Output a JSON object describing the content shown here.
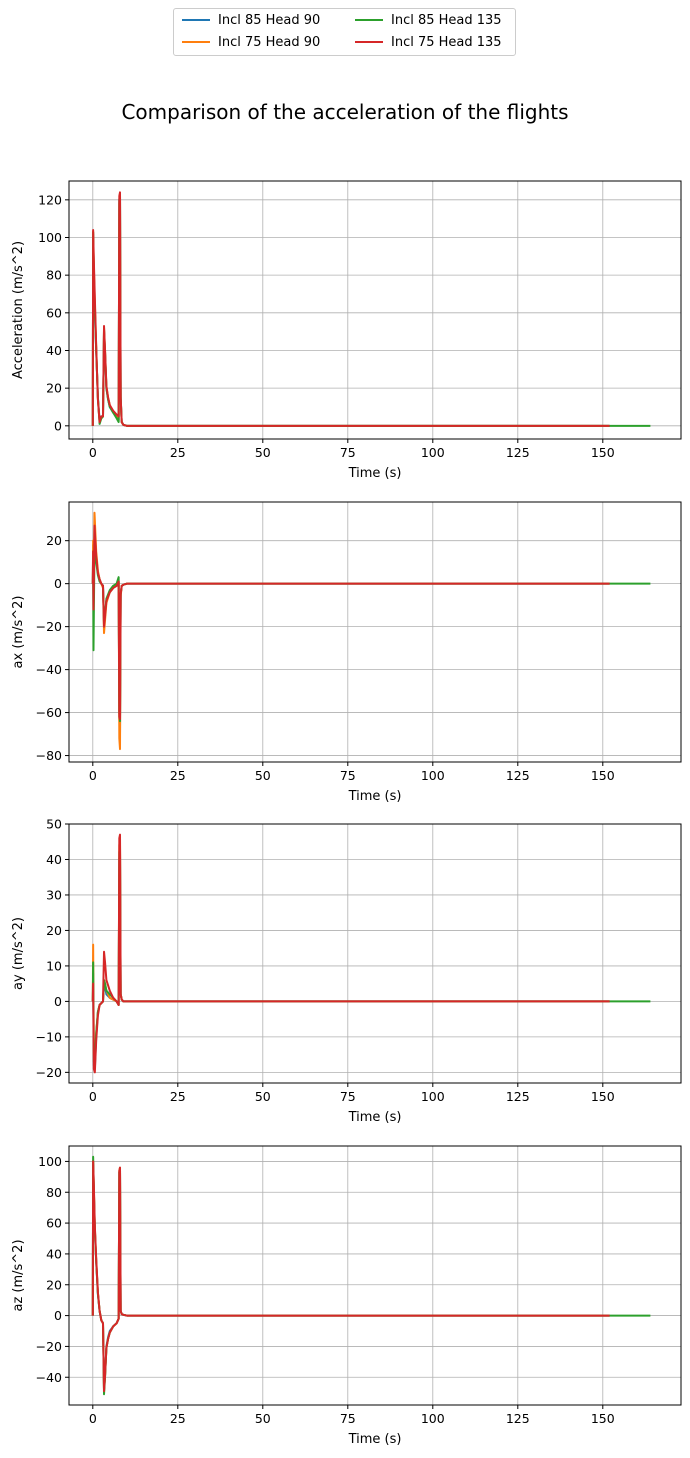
{
  "figure": {
    "title": "Comparison of the acceleration of the flights"
  },
  "legend": {
    "items": [
      {
        "label": "Incl 85 Head 90",
        "color": "#1f77b4"
      },
      {
        "label": "Incl 75 Head 90",
        "color": "#ff7f0e"
      },
      {
        "label": "Incl 85 Head 135",
        "color": "#2ca02c"
      },
      {
        "label": "Incl 75 Head 135",
        "color": "#d62728"
      }
    ]
  },
  "chart_data": [
    {
      "type": "line",
      "xlabel": "Time (s)",
      "ylabel": "Acceleration (m/s^2)",
      "xlim": [
        -7,
        173
      ],
      "ylim": [
        -7,
        130
      ],
      "xticks": [
        0,
        25,
        50,
        75,
        100,
        125,
        150
      ],
      "yticks": [
        0,
        20,
        40,
        60,
        80,
        100,
        120
      ],
      "grid": true,
      "series": [
        {
          "name": "Incl 85 Head 90",
          "color": "#1f77b4",
          "x": [
            0,
            0.1,
            0.3,
            0.6,
            1.0,
            1.5,
            2.0,
            2.5,
            3.0,
            3.3,
            3.6,
            4.0,
            4.5,
            5.0,
            6.0,
            7.0,
            7.6,
            7.8,
            8.0,
            8.2,
            8.5,
            9.0,
            10.0,
            15.0,
            152.0
          ],
          "y": [
            0,
            102,
            80,
            60,
            40,
            15,
            3,
            5,
            5,
            50,
            38,
            20,
            14,
            10,
            7,
            5,
            3,
            120,
            123,
            15,
            2,
            0.5,
            0,
            0,
            0
          ]
        },
        {
          "name": "Incl 75 Head 90",
          "color": "#ff7f0e",
          "x": [
            0,
            0.1,
            0.3,
            0.6,
            1.0,
            1.5,
            2.0,
            2.5,
            3.0,
            3.3,
            3.6,
            4.0,
            4.5,
            5.0,
            6.0,
            7.0,
            7.6,
            7.8,
            8.0,
            8.2,
            8.5,
            9.0,
            10.0,
            15.0,
            152.0
          ],
          "y": [
            0,
            103,
            85,
            65,
            42,
            14,
            2,
            4,
            5,
            52,
            40,
            21,
            15,
            11,
            7,
            5,
            3,
            118,
            122,
            14,
            2,
            0.5,
            0,
            0,
            0
          ]
        },
        {
          "name": "Incl 85 Head 135",
          "color": "#2ca02c",
          "x": [
            0,
            0.1,
            0.3,
            0.6,
            1.0,
            1.5,
            2.0,
            2.5,
            3.0,
            3.3,
            3.6,
            4.0,
            4.5,
            5.0,
            6.0,
            7.0,
            7.6,
            7.8,
            8.0,
            8.2,
            8.5,
            9.0,
            10.0,
            15.0,
            164.0
          ],
          "y": [
            0,
            103,
            82,
            62,
            40,
            15,
            1,
            4,
            5,
            51,
            39,
            20,
            14,
            10,
            7,
            4,
            2,
            120,
            123,
            15,
            2,
            0.5,
            0,
            0,
            0
          ]
        },
        {
          "name": "Incl 75 Head 135",
          "color": "#d62728",
          "x": [
            0,
            0.1,
            0.3,
            0.6,
            1.0,
            1.5,
            2.0,
            2.5,
            3.0,
            3.3,
            3.6,
            4.0,
            4.5,
            5.0,
            6.0,
            7.0,
            7.6,
            7.8,
            8.0,
            8.2,
            8.5,
            9.0,
            10.0,
            15.0,
            152.0
          ],
          "y": [
            0,
            104,
            88,
            68,
            42,
            14,
            2,
            5,
            5,
            53,
            40,
            21,
            15,
            11,
            8,
            6,
            5,
            122,
            124,
            15,
            2,
            0.5,
            0,
            0,
            0
          ]
        }
      ]
    },
    {
      "type": "line",
      "xlabel": "Time (s)",
      "ylabel": "ax (m/s^2)",
      "xlim": [
        -7,
        173
      ],
      "ylim": [
        -83,
        38
      ],
      "xticks": [
        0,
        25,
        50,
        75,
        100,
        125,
        150
      ],
      "yticks": [
        -80,
        -60,
        -40,
        -20,
        0,
        20
      ],
      "grid": true,
      "series": [
        {
          "name": "Incl 85 Head 90",
          "color": "#1f77b4",
          "x": [
            0,
            0.1,
            0.2,
            0.5,
            1.0,
            1.5,
            2.0,
            2.5,
            3.0,
            3.3,
            3.6,
            4.0,
            5.0,
            6.0,
            7.0,
            7.6,
            7.8,
            8.0,
            8.2,
            8.5,
            9.0,
            10.0,
            15.0,
            152.0
          ],
          "y": [
            0,
            18,
            -10,
            27,
            12,
            5,
            2,
            0,
            -1,
            -20,
            -15,
            -8,
            -4,
            -2,
            -1,
            1,
            -62,
            -70,
            -5,
            -1,
            -0.5,
            0,
            0,
            0
          ]
        },
        {
          "name": "Incl 75 Head 90",
          "color": "#ff7f0e",
          "x": [
            0,
            0.1,
            0.2,
            0.5,
            1.0,
            1.5,
            2.0,
            2.5,
            3.0,
            3.3,
            3.6,
            4.0,
            5.0,
            6.0,
            7.0,
            7.6,
            7.8,
            8.0,
            8.2,
            8.5,
            9.0,
            10.0,
            15.0,
            152.0
          ],
          "y": [
            0,
            20,
            -5,
            33,
            15,
            6,
            2,
            0,
            -2,
            -23,
            -17,
            -9,
            -4,
            -2,
            -1,
            1,
            -72,
            -77,
            -6,
            -1,
            -0.5,
            0,
            0,
            0
          ]
        },
        {
          "name": "Incl 85 Head 135",
          "color": "#2ca02c",
          "x": [
            0,
            0.1,
            0.2,
            0.5,
            1.0,
            1.5,
            2.0,
            2.5,
            3.0,
            3.3,
            3.6,
            4.0,
            5.0,
            6.0,
            7.0,
            7.6,
            7.8,
            8.0,
            8.2,
            8.5,
            9.0,
            10.0,
            15.0,
            164.0
          ],
          "y": [
            0,
            10,
            -31,
            18,
            10,
            4,
            1,
            0,
            -1,
            -18,
            -14,
            -7,
            -3,
            -1,
            0,
            3,
            -60,
            -64,
            -5,
            -1,
            -0.5,
            0,
            0,
            0
          ]
        },
        {
          "name": "Incl 75 Head 135",
          "color": "#d62728",
          "x": [
            0,
            0.1,
            0.2,
            0.5,
            1.0,
            1.5,
            2.0,
            2.5,
            3.0,
            3.3,
            3.6,
            4.0,
            5.0,
            6.0,
            7.0,
            7.6,
            7.8,
            8.0,
            8.2,
            8.5,
            9.0,
            10.0,
            15.0,
            152.0
          ],
          "y": [
            0,
            15,
            -12,
            27,
            13,
            5,
            2,
            0,
            -1,
            -20,
            -15,
            -8,
            -4,
            -2,
            -1,
            1,
            -62,
            -63,
            -5,
            -1,
            -0.5,
            0,
            0,
            0
          ]
        }
      ]
    },
    {
      "type": "line",
      "xlabel": "Time (s)",
      "ylabel": "ay (m/s^2)",
      "xlim": [
        -7,
        173
      ],
      "ylim": [
        -23,
        50
      ],
      "xticks": [
        0,
        25,
        50,
        75,
        100,
        125,
        150
      ],
      "yticks": [
        -20,
        -10,
        0,
        10,
        20,
        30,
        40,
        50
      ],
      "grid": true,
      "series": [
        {
          "name": "Incl 85 Head 90",
          "color": "#1f77b4",
          "x": [
            0,
            0.1,
            0.3,
            0.6,
            1.0,
            1.5,
            2.0,
            2.5,
            3.0,
            3.3,
            3.6,
            4.0,
            5.0,
            6.0,
            7.0,
            7.6,
            7.8,
            8.0,
            8.2,
            8.5,
            9.0,
            10.0,
            15.0,
            152.0
          ],
          "y": [
            0,
            8,
            -18,
            -19,
            -10,
            -3,
            -1,
            -0.5,
            0,
            5,
            4,
            2,
            1,
            0.5,
            0,
            -1,
            40,
            42,
            2,
            0.5,
            0,
            0,
            0,
            0
          ]
        },
        {
          "name": "Incl 75 Head 90",
          "color": "#ff7f0e",
          "x": [
            0,
            0.1,
            0.3,
            0.6,
            1.0,
            1.5,
            2.0,
            2.5,
            3.0,
            3.3,
            3.6,
            4.0,
            5.0,
            6.0,
            7.0,
            7.6,
            7.8,
            8.0,
            8.2,
            8.5,
            9.0,
            10.0,
            15.0,
            152.0
          ],
          "y": [
            0,
            16,
            -15,
            -17,
            -9,
            -3,
            -1,
            -0.5,
            0,
            6,
            5,
            3,
            1,
            0.5,
            0,
            -1,
            44,
            46,
            2,
            0.5,
            0,
            0,
            0,
            0
          ]
        },
        {
          "name": "Incl 85 Head 135",
          "color": "#2ca02c",
          "x": [
            0,
            0.1,
            0.3,
            0.6,
            1.0,
            1.5,
            2.0,
            2.5,
            3.0,
            3.3,
            3.6,
            4.0,
            5.0,
            6.0,
            7.0,
            7.6,
            7.8,
            8.0,
            8.2,
            8.5,
            9.0,
            10.0,
            15.0,
            164.0
          ],
          "y": [
            0,
            11,
            -17,
            -18,
            -9,
            -3,
            -1,
            -0.5,
            0,
            6,
            5,
            3,
            2,
            1,
            0,
            -1,
            42,
            44,
            2,
            0.5,
            0,
            0,
            0,
            0
          ]
        },
        {
          "name": "Incl 75 Head 135",
          "color": "#d62728",
          "x": [
            0,
            0.1,
            0.3,
            0.6,
            1.0,
            1.5,
            2.0,
            2.5,
            3.0,
            3.3,
            3.6,
            4.0,
            5.0,
            6.0,
            7.0,
            7.6,
            7.8,
            8.0,
            8.2,
            8.5,
            9.0,
            10.0,
            15.0,
            152.0
          ],
          "y": [
            0,
            5,
            -19,
            -20,
            -11,
            -4,
            -1,
            -0.5,
            0,
            14,
            11,
            6,
            3,
            1,
            0,
            -1,
            46,
            47,
            2,
            0.5,
            0,
            0,
            0,
            0
          ]
        }
      ]
    },
    {
      "type": "line",
      "xlabel": "Time (s)",
      "ylabel": "az (m/s^2)",
      "xlim": [
        -7,
        173
      ],
      "ylim": [
        -58,
        110
      ],
      "xticks": [
        0,
        25,
        50,
        75,
        100,
        125,
        150
      ],
      "yticks": [
        -40,
        -20,
        0,
        20,
        40,
        60,
        80,
        100
      ],
      "grid": true,
      "series": [
        {
          "name": "Incl 85 Head 90",
          "color": "#1f77b4",
          "x": [
            0,
            0.1,
            0.3,
            0.6,
            1.0,
            1.5,
            2.0,
            2.5,
            3.0,
            3.3,
            3.6,
            4.0,
            4.5,
            5.0,
            6.0,
            7.0,
            7.6,
            7.8,
            8.0,
            8.2,
            8.5,
            9.0,
            10.0,
            15.0,
            152.0
          ],
          "y": [
            0,
            98,
            80,
            55,
            35,
            14,
            3,
            -3,
            -5,
            -48,
            -38,
            -20,
            -14,
            -10,
            -7,
            -5,
            -2,
            93,
            95,
            3,
            1,
            0.5,
            0,
            0,
            0
          ]
        },
        {
          "name": "Incl 75 Head 90",
          "color": "#ff7f0e",
          "x": [
            0,
            0.1,
            0.3,
            0.6,
            1.0,
            1.5,
            2.0,
            2.5,
            3.0,
            3.3,
            3.6,
            4.0,
            4.5,
            5.0,
            6.0,
            7.0,
            7.6,
            7.8,
            8.0,
            8.2,
            8.5,
            9.0,
            10.0,
            15.0,
            152.0
          ],
          "y": [
            0,
            100,
            83,
            57,
            36,
            15,
            3,
            -3,
            -5,
            -49,
            -39,
            -21,
            -15,
            -11,
            -7,
            -5,
            -2,
            94,
            96,
            3,
            1,
            0.5,
            0,
            0,
            0
          ]
        },
        {
          "name": "Incl 85 Head 135",
          "color": "#2ca02c",
          "x": [
            0,
            0.1,
            0.3,
            0.6,
            1.0,
            1.5,
            2.0,
            2.5,
            3.0,
            3.3,
            3.6,
            4.0,
            4.5,
            5.0,
            6.0,
            7.0,
            7.6,
            7.8,
            8.0,
            8.2,
            8.5,
            9.0,
            10.0,
            15.0,
            164.0
          ],
          "y": [
            0,
            103,
            82,
            56,
            35,
            14,
            3,
            -3,
            -5,
            -51,
            -40,
            -21,
            -15,
            -11,
            -7,
            -5,
            -2,
            93,
            95,
            3,
            1,
            0.5,
            0,
            0,
            0
          ]
        },
        {
          "name": "Incl 75 Head 135",
          "color": "#d62728",
          "x": [
            0,
            0.1,
            0.3,
            0.6,
            1.0,
            1.5,
            2.0,
            2.5,
            3.0,
            3.3,
            3.6,
            4.0,
            4.5,
            5.0,
            6.0,
            7.0,
            7.6,
            7.8,
            8.0,
            8.2,
            8.5,
            9.0,
            10.0,
            15.0,
            152.0
          ],
          "y": [
            0,
            100,
            85,
            58,
            37,
            15,
            3,
            -3,
            -5,
            -49,
            -39,
            -21,
            -15,
            -11,
            -7,
            -5,
            -2,
            94,
            96,
            3,
            1,
            0.5,
            0,
            0,
            0
          ]
        }
      ]
    }
  ]
}
